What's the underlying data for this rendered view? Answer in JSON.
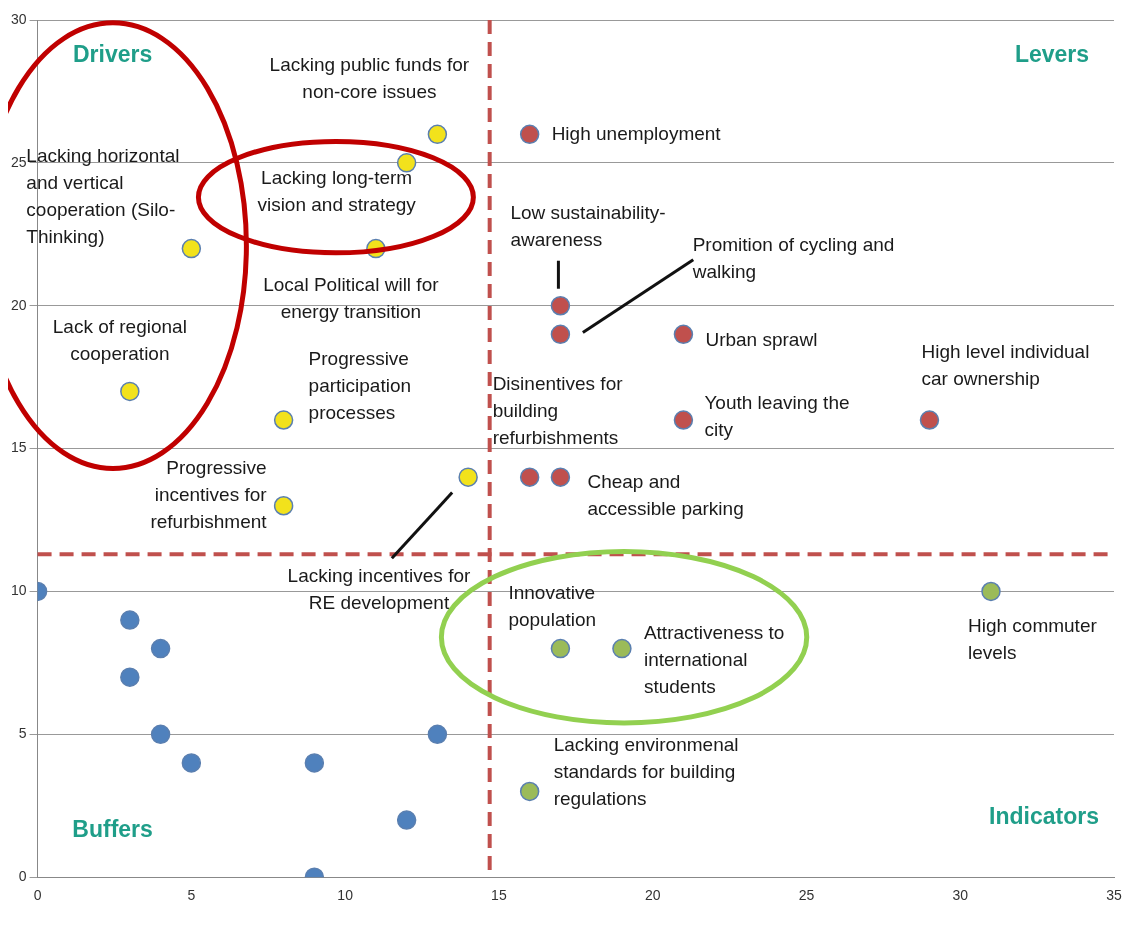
{
  "chart_data": {
    "type": "scatter",
    "xlim": [
      0,
      35
    ],
    "ylim": [
      0,
      30
    ],
    "xticks": [
      0,
      5,
      10,
      15,
      20,
      25,
      30,
      35
    ],
    "yticks": [
      0,
      5,
      10,
      15,
      20,
      25,
      30
    ],
    "grid": "y",
    "legend": false,
    "marker": "circle",
    "series": [
      {
        "color": "#f2e21c",
        "x": [
          3,
          5,
          8,
          8,
          11,
          12,
          13,
          14
        ],
        "values": [
          17,
          22,
          16,
          13,
          22,
          25,
          26,
          14
        ]
      },
      {
        "color": "#c0504d",
        "x": [
          16,
          17,
          17,
          21,
          21,
          29,
          16,
          17
        ],
        "values": [
          26,
          20,
          19,
          19,
          16,
          16,
          14,
          14
        ]
      },
      {
        "color": "#9bbb59",
        "x": [
          17,
          19,
          31,
          16
        ],
        "values": [
          8,
          8,
          10,
          3
        ]
      },
      {
        "color": "#4f81bd",
        "x": [
          0,
          3,
          3,
          4,
          4,
          5,
          9,
          13,
          12,
          9
        ],
        "values": [
          10,
          9,
          7,
          8,
          5,
          4,
          4,
          5,
          2,
          0
        ]
      }
    ],
    "ref_lines": [
      {
        "axis": "x",
        "value": 14.7,
        "color": "#c0504d",
        "line_style": "dashed"
      },
      {
        "axis": "y",
        "value": 11.3,
        "color": "#c0504d",
        "line_style": "dashed"
      }
    ],
    "annotations": [
      "Drivers",
      "Levers",
      "Buffers",
      "Indicators",
      "Lacking incentives for RE development",
      "Promition of cycling and walking",
      {
        "text": "Lacking public funds for non-core issues",
        "x": 13,
        "y": 26
      },
      {
        "text": "High unemployment",
        "x": 16,
        "y": 26
      },
      {
        "text": "Lacking horizontal and vertical cooperation (Silo-Thinking)",
        "x": 5,
        "y": 22
      },
      {
        "text": "Lacking long-term vision and strategy",
        "x": 12,
        "y": 25
      },
      {
        "text": "Local Political will for energy transition",
        "x": 11,
        "y": 22
      },
      {
        "text": "Lack of regional cooperation",
        "x": 3,
        "y": 17
      },
      {
        "text": "Progressive participation processes",
        "x": 8,
        "y": 16
      },
      {
        "text": "Progressive incentives for refurbishment",
        "x": 8,
        "y": 13
      },
      {
        "text": "Low sustainability-awareness",
        "x": 17,
        "y": 20
      },
      {
        "text": "Urban sprawl",
        "x": 21,
        "y": 19
      },
      {
        "text": "High level individual car ownership",
        "x": 29,
        "y": 16
      },
      {
        "text": "Disinentives for building refurbishments",
        "x": 16,
        "y": 14
      },
      {
        "text": "Youth leaving the city",
        "x": 21,
        "y": 16
      },
      {
        "text": "Cheap and accessible parking",
        "x": 17,
        "y": 14
      },
      {
        "text": "Innovative population",
        "x": 17,
        "y": 8
      },
      {
        "text": "Attractiveness to international students",
        "x": 19,
        "y": 8
      },
      {
        "text": "High commuter levels",
        "x": 31,
        "y": 10
      },
      {
        "text": "Lacking environmenal standards for building regulations",
        "x": 16,
        "y": 3
      }
    ]
  }
}
